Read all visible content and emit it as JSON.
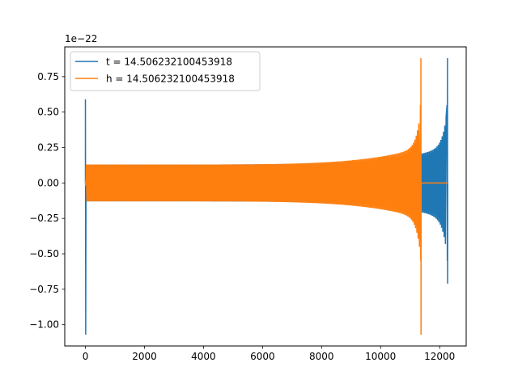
{
  "chart_data": {
    "type": "line",
    "title": "",
    "xlabel": "",
    "ylabel": "",
    "y_offset_label": "1e−22",
    "xlim": [
      -700,
      12900
    ],
    "ylim": [
      -1.15,
      0.96
    ],
    "x_ticks": [
      0,
      2000,
      4000,
      6000,
      8000,
      10000,
      12000
    ],
    "x_tick_labels": [
      "0",
      "2000",
      "4000",
      "6000",
      "8000",
      "10000",
      "12000"
    ],
    "y_ticks": [
      -1.0,
      -0.75,
      -0.5,
      -0.25,
      0.0,
      0.25,
      0.5,
      0.75
    ],
    "y_tick_labels": [
      "−1.00",
      "−0.75",
      "−0.50",
      "−0.25",
      "0.00",
      "0.25",
      "0.50",
      "0.75"
    ],
    "grid": false,
    "legend_position": "top-left",
    "series": [
      {
        "name": "t = 14.506232100453918",
        "color": "#1f77b4",
        "kind": "chirp",
        "x_start": 0,
        "x_merger": 12270,
        "x_end": 12280,
        "start_spike_min": -1.07,
        "start_spike_max": 0.59,
        "amp_at_start": 0.13,
        "amp_before_merger": 0.25,
        "amp_near_merger": 0.55,
        "merger_max": 0.88,
        "merger_min": -0.71
      },
      {
        "name": "h = 14.506232100453918",
        "color": "#ff7f0e",
        "kind": "chirp",
        "x_start": 0,
        "x_merger": 11370,
        "x_end": 12270,
        "start_spike_min": -0.02,
        "start_spike_max": 0.02,
        "amp_at_start": 0.13,
        "amp_before_merger": 0.25,
        "amp_near_merger": 0.55,
        "merger_max": 0.88,
        "merger_min": -1.07
      }
    ]
  }
}
